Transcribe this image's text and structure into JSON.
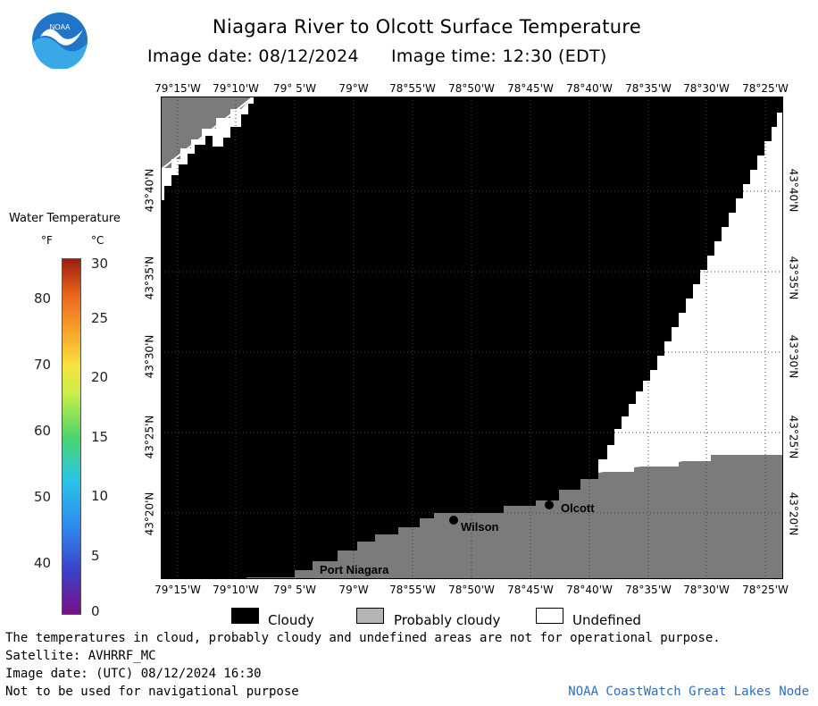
{
  "title": "Niagara River to Olcott Surface Temperature",
  "image_date": "Image date: 08/12/2024",
  "image_time": "Image time: 12:30 (EDT)",
  "lon_labels": [
    "79°15'W",
    "79°10'W",
    "79° 5'W",
    "79°W",
    "78°55'W",
    "78°50'W",
    "78°45'W",
    "78°40'W",
    "78°35'W",
    "78°30'W",
    "78°25'W"
  ],
  "lat_labels": [
    "43°40'N",
    "43°35'N",
    "43°30'N",
    "43°25'N",
    "43°20'N"
  ],
  "places": [
    {
      "name": "Wilson",
      "lon": -78.826,
      "lat": 43.31
    },
    {
      "name": "Olcott",
      "lon": -78.716,
      "lat": 43.338
    },
    {
      "name": "Port Niagara",
      "lon": -79.06,
      "lat": 43.262
    }
  ],
  "legend": {
    "title": "Water Temperature",
    "unit_f": "°F",
    "unit_c": "°C",
    "f_ticks": [
      "80",
      "70",
      "60",
      "50",
      "40"
    ],
    "c_ticks": [
      "30",
      "25",
      "20",
      "15",
      "10",
      "5",
      "0"
    ],
    "colors": {
      "low": "#7a0f86",
      "high": "#9b1e0d"
    }
  },
  "mask_key": [
    {
      "label": "Cloudy",
      "color": "#000000"
    },
    {
      "label": "Probably cloudy",
      "color": "#b4b4b4"
    },
    {
      "label": "Undefined",
      "color": "#ffffff"
    }
  ],
  "footer": {
    "note": "The temperatures in cloud, probably cloudy and undefined areas are not for operational purpose.",
    "satellite": "Satellite: AVHRRF_MC",
    "utc": "Image date: (UTC) 08/12/2024  16:30",
    "nav": "Not to be used for navigational purpose",
    "credit": "NOAA CoastWatch Great Lakes Node"
  },
  "logo": {
    "text": "NOAA",
    "colors": {
      "blue": "#0a5cb4",
      "sky": "#39a9e6"
    }
  }
}
